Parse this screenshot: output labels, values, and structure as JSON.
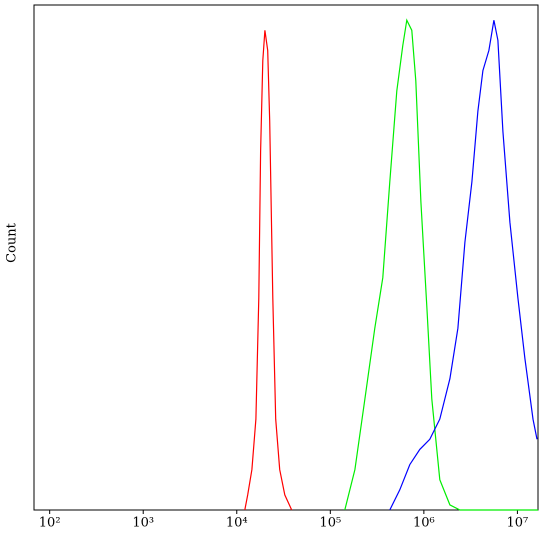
{
  "chart_data": {
    "type": "line",
    "y_label": "Count",
    "xscale": "log",
    "xlim": [
      68,
      16600000
    ],
    "ylim": [
      0,
      100
    ],
    "xticks": [
      {
        "value": 100,
        "label": "10²"
      },
      {
        "value": 1000,
        "label": "10³"
      },
      {
        "value": 10000,
        "label": "10⁴"
      },
      {
        "value": 100000,
        "label": "10⁵"
      },
      {
        "value": 1000000,
        "label": "10⁶"
      },
      {
        "value": 10000000,
        "label": "10⁷"
      }
    ],
    "series": [
      {
        "color": "#ff0000",
        "x": [
          12200,
          13100,
          14500,
          16000,
          17200,
          18000,
          19000,
          20000,
          21400,
          22500,
          24300,
          26100,
          28800,
          32600,
          38700
        ],
        "values": [
          0,
          3,
          8,
          18,
          42,
          71,
          89,
          95,
          91,
          77,
          42,
          18,
          8,
          3,
          0
        ]
      },
      {
        "color": "#00ee00",
        "x": [
          143000,
          183000,
          234000,
          299000,
          364000,
          432000,
          514000,
          596000,
          657000,
          744000,
          820000,
          929000,
          1077000,
          1217000,
          1482000,
          1897000,
          2427000,
          16600000
        ],
        "values": [
          0,
          8,
          22,
          36,
          46,
          65,
          83,
          92,
          97,
          95,
          85,
          61,
          40,
          22,
          6,
          1,
          0,
          0
        ]
      },
      {
        "color": "#0000ff",
        "x": [
          432000,
          553000,
          708000,
          905000,
          1158000,
          1482000,
          1897000,
          2311000,
          2748000,
          3262000,
          3781000,
          4277000,
          4955000,
          5608000,
          6186000,
          6998000,
          8318000,
          10120000,
          12020000,
          14660000,
          16180000
        ],
        "values": [
          0,
          4,
          9,
          12,
          14,
          18,
          26,
          36,
          53,
          65,
          79,
          87,
          91,
          97,
          93,
          75,
          57,
          42,
          30,
          18,
          14
        ]
      }
    ]
  }
}
